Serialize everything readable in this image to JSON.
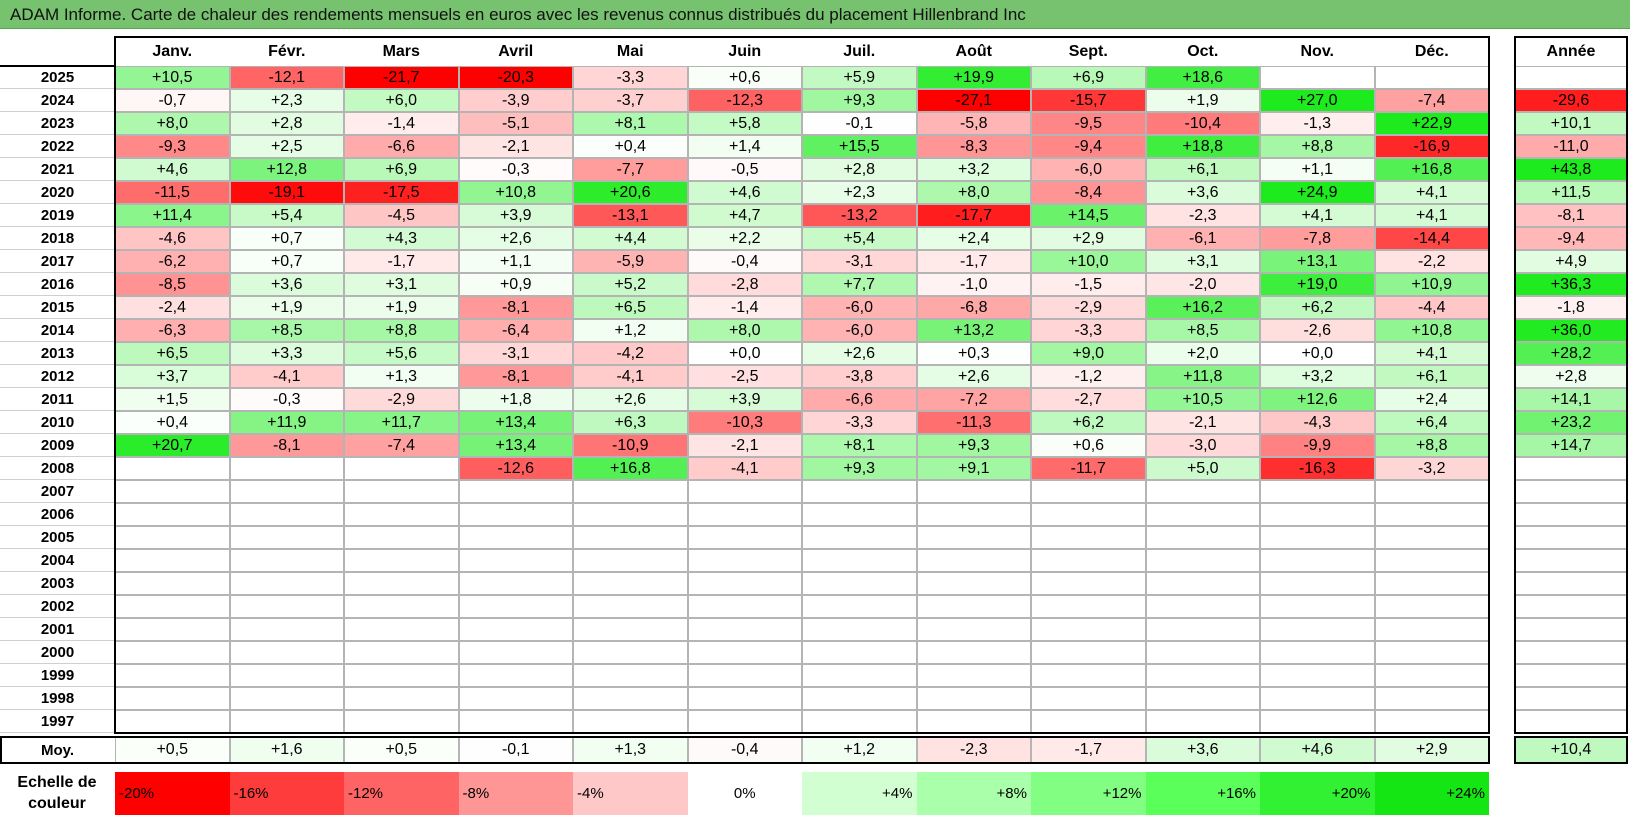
{
  "title": "ADAM Informe. Carte de chaleur des rendements mensuels en euros avec les revenus connus distribués du placement Hillenbrand Inc",
  "chart_data": {
    "type": "heatmap",
    "title": "ADAM Informe. Carte de chaleur des rendements mensuels en euros avec les revenus connus distribués du placement Hillenbrand Inc",
    "columns": [
      "Janv.",
      "Févr.",
      "Mars",
      "Avril",
      "Mai",
      "Juin",
      "Juil.",
      "Août",
      "Sept.",
      "Oct.",
      "Nov.",
      "Déc."
    ],
    "year_column": "Année",
    "rows": [
      {
        "year": "2025",
        "months": [
          "+10,5",
          "-12,1",
          "-21,7",
          "-20,3",
          "-3,3",
          "+0,6",
          "+5,9",
          "+19,9",
          "+6,9",
          "+18,6",
          "",
          ""
        ],
        "annual": ""
      },
      {
        "year": "2024",
        "months": [
          "-0,7",
          "+2,3",
          "+6,0",
          "-3,9",
          "-3,7",
          "-12,3",
          "+9,3",
          "-27,1",
          "-15,7",
          "+1,9",
          "+27,0",
          "-7,4"
        ],
        "annual": "-29,6"
      },
      {
        "year": "2023",
        "months": [
          "+8,0",
          "+2,8",
          "-1,4",
          "-5,1",
          "+8,1",
          "+5,8",
          "-0,1",
          "-5,8",
          "-9,5",
          "-10,4",
          "-1,3",
          "+22,9"
        ],
        "annual": "+10,1"
      },
      {
        "year": "2022",
        "months": [
          "-9,3",
          "+2,5",
          "-6,6",
          "-2,1",
          "+0,4",
          "+1,4",
          "+15,5",
          "-8,3",
          "-9,4",
          "+18,8",
          "+8,8",
          "-16,9"
        ],
        "annual": "-11,0"
      },
      {
        "year": "2021",
        "months": [
          "+4,6",
          "+12,8",
          "+6,9",
          "-0,3",
          "-7,7",
          "-0,5",
          "+2,8",
          "+3,2",
          "-6,0",
          "+6,1",
          "+1,1",
          "+16,8"
        ],
        "annual": "+43,8"
      },
      {
        "year": "2020",
        "months": [
          "-11,5",
          "-19,1",
          "-17,5",
          "+10,8",
          "+20,6",
          "+4,6",
          "+2,3",
          "+8,0",
          "-8,4",
          "+3,6",
          "+24,9",
          "+4,1"
        ],
        "annual": "+11,5"
      },
      {
        "year": "2019",
        "months": [
          "+11,4",
          "+5,4",
          "-4,5",
          "+3,9",
          "-13,1",
          "+4,7",
          "-13,2",
          "-17,7",
          "+14,5",
          "-2,3",
          "+4,1",
          "+4,1"
        ],
        "annual": "-8,1"
      },
      {
        "year": "2018",
        "months": [
          "-4,6",
          "+0,7",
          "+4,3",
          "+2,6",
          "+4,4",
          "+2,2",
          "+5,4",
          "+2,4",
          "+2,9",
          "-6,1",
          "-7,8",
          "-14,4"
        ],
        "annual": "-9,4"
      },
      {
        "year": "2017",
        "months": [
          "-6,2",
          "+0,7",
          "-1,7",
          "+1,1",
          "-5,9",
          "-0,4",
          "-3,1",
          "-1,7",
          "+10,0",
          "+3,1",
          "+13,1",
          "-2,2"
        ],
        "annual": "+4,9"
      },
      {
        "year": "2016",
        "months": [
          "-8,5",
          "+3,6",
          "+3,1",
          "+0,9",
          "+5,2",
          "-2,8",
          "+7,7",
          "-1,0",
          "-1,5",
          "-2,0",
          "+19,0",
          "+10,9"
        ],
        "annual": "+36,3"
      },
      {
        "year": "2015",
        "months": [
          "-2,4",
          "+1,9",
          "+1,9",
          "-8,1",
          "+6,5",
          "-1,4",
          "-6,0",
          "-6,8",
          "-2,9",
          "+16,2",
          "+6,2",
          "-4,4"
        ],
        "annual": "-1,8"
      },
      {
        "year": "2014",
        "months": [
          "-6,3",
          "+8,5",
          "+8,8",
          "-6,4",
          "+1,2",
          "+8,0",
          "-6,0",
          "+13,2",
          "-3,3",
          "+8,5",
          "-2,6",
          "+10,8"
        ],
        "annual": "+36,0"
      },
      {
        "year": "2013",
        "months": [
          "+6,5",
          "+3,3",
          "+5,6",
          "-3,1",
          "-4,2",
          "+0,0",
          "+2,6",
          "+0,3",
          "+9,0",
          "+2,0",
          "+0,0",
          "+4,1"
        ],
        "annual": "+28,2"
      },
      {
        "year": "2012",
        "months": [
          "+3,7",
          "-4,1",
          "+1,3",
          "-8,1",
          "-4,1",
          "-2,5",
          "-3,8",
          "+2,6",
          "-1,2",
          "+11,8",
          "+3,2",
          "+6,1"
        ],
        "annual": "+2,8"
      },
      {
        "year": "2011",
        "months": [
          "+1,5",
          "-0,3",
          "-2,9",
          "+1,8",
          "+2,6",
          "+3,9",
          "-6,6",
          "-7,2",
          "-2,7",
          "+10,5",
          "+12,6",
          "+2,4"
        ],
        "annual": "+14,1"
      },
      {
        "year": "2010",
        "months": [
          "+0,4",
          "+11,9",
          "+11,7",
          "+13,4",
          "+6,3",
          "-10,3",
          "-3,3",
          "-11,3",
          "+6,2",
          "-2,1",
          "-4,3",
          "+6,4"
        ],
        "annual": "+23,2"
      },
      {
        "year": "2009",
        "months": [
          "+20,7",
          "-8,1",
          "-7,4",
          "+13,4",
          "-10,9",
          "-2,1",
          "+8,1",
          "+9,3",
          "+0,6",
          "-3,0",
          "-9,9",
          "+8,8"
        ],
        "annual": "+14,7"
      },
      {
        "year": "2008",
        "months": [
          "",
          "",
          "",
          "-12,6",
          "+16,8",
          "-4,1",
          "+9,3",
          "+9,1",
          "-11,7",
          "+5,0",
          "-16,3",
          "-3,2"
        ],
        "annual": ""
      },
      {
        "year": "2007",
        "months": [
          "",
          "",
          "",
          "",
          "",
          "",
          "",
          "",
          "",
          "",
          "",
          ""
        ],
        "annual": ""
      },
      {
        "year": "2006",
        "months": [
          "",
          "",
          "",
          "",
          "",
          "",
          "",
          "",
          "",
          "",
          "",
          ""
        ],
        "annual": ""
      },
      {
        "year": "2005",
        "months": [
          "",
          "",
          "",
          "",
          "",
          "",
          "",
          "",
          "",
          "",
          "",
          ""
        ],
        "annual": ""
      },
      {
        "year": "2004",
        "months": [
          "",
          "",
          "",
          "",
          "",
          "",
          "",
          "",
          "",
          "",
          "",
          ""
        ],
        "annual": ""
      },
      {
        "year": "2003",
        "months": [
          "",
          "",
          "",
          "",
          "",
          "",
          "",
          "",
          "",
          "",
          "",
          ""
        ],
        "annual": ""
      },
      {
        "year": "2002",
        "months": [
          "",
          "",
          "",
          "",
          "",
          "",
          "",
          "",
          "",
          "",
          "",
          ""
        ],
        "annual": ""
      },
      {
        "year": "2001",
        "months": [
          "",
          "",
          "",
          "",
          "",
          "",
          "",
          "",
          "",
          "",
          "",
          ""
        ],
        "annual": ""
      },
      {
        "year": "2000",
        "months": [
          "",
          "",
          "",
          "",
          "",
          "",
          "",
          "",
          "",
          "",
          "",
          ""
        ],
        "annual": ""
      },
      {
        "year": "1999",
        "months": [
          "",
          "",
          "",
          "",
          "",
          "",
          "",
          "",
          "",
          "",
          "",
          ""
        ],
        "annual": ""
      },
      {
        "year": "1998",
        "months": [
          "",
          "",
          "",
          "",
          "",
          "",
          "",
          "",
          "",
          "",
          "",
          ""
        ],
        "annual": ""
      },
      {
        "year": "1997",
        "months": [
          "",
          "",
          "",
          "",
          "",
          "",
          "",
          "",
          "",
          "",
          "",
          ""
        ],
        "annual": ""
      }
    ],
    "average": {
      "label": "Moy.",
      "months": [
        "+0,5",
        "+1,6",
        "+0,5",
        "-0,1",
        "+1,3",
        "-0,4",
        "+1,2",
        "-2,3",
        "-1,7",
        "+3,6",
        "+4,6",
        "+2,9"
      ],
      "annual": "+10,4"
    },
    "color_scale": {
      "label": "Echelle de couleur",
      "stops": [
        "-20%",
        "-16%",
        "-12%",
        "-8%",
        "-4%",
        "0%",
        "+4%",
        "+8%",
        "+12%",
        "+16%",
        "+20%",
        "+24%"
      ],
      "colors": [
        "#ff0000",
        "#ff3c3c",
        "#ff6464",
        "#ff9696",
        "#ffc8c8",
        "#ffffff",
        "#d2ffd2",
        "#aaffaa",
        "#82ff82",
        "#5aff5a",
        "#32f032",
        "#14e614"
      ]
    }
  }
}
